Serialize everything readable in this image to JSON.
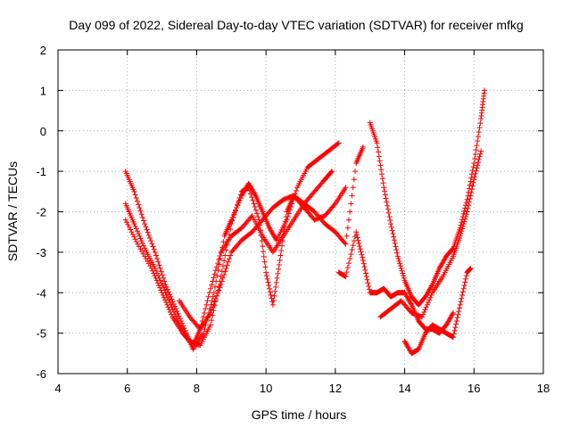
{
  "chart_data": {
    "type": "scatter",
    "title": "Day 099 of 2022, Sidereal Day-to-day VTEC variation (SDTVAR) for receiver mfkg",
    "xlabel": "GPS time / hours",
    "ylabel": "SDTVAR / TECUs",
    "xlim": [
      4,
      18
    ],
    "ylim": [
      -6,
      2
    ],
    "xticks": [
      "4",
      "6",
      "8",
      "10",
      "12",
      "14",
      "16",
      "18"
    ],
    "yticks": [
      "-6",
      "-5",
      "-4",
      "-3",
      "-2",
      "-1",
      "0",
      "1",
      "2"
    ],
    "grid": true,
    "marker": "+",
    "color": "#ff0000",
    "series": [
      {
        "x": [
          5.95,
          6.2,
          6.5,
          6.8,
          7.1,
          7.4,
          7.7,
          7.9,
          8.2,
          8.5,
          8.8,
          9.0,
          9.3,
          9.5,
          9.7,
          9.9,
          10.1,
          10.3,
          10.6,
          10.9,
          11.2,
          11.5,
          11.8,
          12.1
        ],
        "y": [
          -1.0,
          -1.5,
          -2.3,
          -3.0,
          -3.8,
          -4.4,
          -5.0,
          -5.4,
          -5.0,
          -4.0,
          -2.6,
          -2.2,
          -1.6,
          -1.3,
          -1.6,
          -2.0,
          -2.4,
          -2.7,
          -2.2,
          -1.4,
          -0.9,
          -0.7,
          -0.5,
          -0.3
        ]
      },
      {
        "x": [
          5.95,
          6.2,
          6.5,
          6.8,
          7.1,
          7.4,
          7.7,
          7.9,
          8.1,
          8.4,
          8.7,
          9.0,
          9.3,
          9.6,
          9.9,
          10.2,
          10.5,
          10.8,
          11.1,
          11.4,
          11.7,
          11.9
        ],
        "y": [
          -1.8,
          -2.3,
          -2.9,
          -3.4,
          -4.0,
          -4.6,
          -5.1,
          -5.3,
          -4.9,
          -3.9,
          -3.0,
          -2.6,
          -2.4,
          -2.1,
          -2.6,
          -3.0,
          -2.6,
          -2.2,
          -1.8,
          -1.5,
          -1.2,
          -1.0
        ]
      },
      {
        "x": [
          5.95,
          6.3,
          6.7,
          7.0,
          7.3,
          7.6,
          7.8,
          8.1,
          8.4,
          8.7,
          9.0,
          9.3,
          9.5,
          9.8,
          10.0,
          10.2,
          10.4,
          10.6,
          10.8,
          11.1,
          11.4,
          11.7,
          12.0,
          12.3
        ],
        "y": [
          -2.2,
          -2.8,
          -3.4,
          -4.0,
          -4.6,
          -5.0,
          -5.2,
          -5.3,
          -4.8,
          -3.6,
          -2.3,
          -1.5,
          -1.4,
          -2.2,
          -3.5,
          -4.3,
          -3.2,
          -2.0,
          -1.6,
          -1.9,
          -2.2,
          -2.1,
          -1.8,
          -1.4
        ]
      },
      {
        "x": [
          7.5,
          7.8,
          8.1,
          8.4,
          8.7,
          9.0,
          9.3,
          9.6,
          9.9,
          10.2,
          10.5,
          10.8,
          11.1,
          11.4,
          11.7,
          12.0,
          12.3,
          12.6,
          12.8
        ],
        "y": [
          -4.2,
          -4.6,
          -4.9,
          -4.5,
          -3.8,
          -3.0,
          -2.7,
          -2.5,
          -2.2,
          -1.9,
          -1.7,
          -1.6,
          -1.8,
          -2.0,
          -2.3,
          -2.5,
          -2.8,
          -0.8,
          -0.4
        ]
      },
      {
        "x": [
          12.1,
          12.3,
          12.6,
          12.8,
          13.0,
          13.2,
          13.4,
          13.6,
          13.8,
          14.0,
          14.2,
          14.4,
          14.6,
          14.8,
          15.0,
          15.2,
          15.4
        ],
        "y": [
          -3.5,
          -3.6,
          -2.5,
          -3.2,
          -4.0,
          -4.0,
          -3.9,
          -4.1,
          -4.0,
          -4.0,
          -4.3,
          -4.7,
          -4.9,
          -4.9,
          -5.0,
          -4.8,
          -4.5
        ]
      },
      {
        "x": [
          13.0,
          13.2,
          13.4,
          13.6,
          13.8,
          14.0,
          14.2,
          14.4,
          14.6,
          14.8,
          15.0,
          15.2,
          15.4,
          15.6,
          15.8,
          16.0,
          16.2,
          16.3
        ],
        "y": [
          0.2,
          -0.3,
          -1.4,
          -2.3,
          -3.1,
          -3.7,
          -4.1,
          -4.3,
          -4.1,
          -3.8,
          -3.4,
          -3.1,
          -2.9,
          -2.4,
          -1.7,
          -0.8,
          0.3,
          1.0
        ]
      },
      {
        "x": [
          13.3,
          13.6,
          13.9,
          14.2,
          14.5,
          14.8,
          15.1,
          15.4,
          15.6,
          15.8,
          16.0,
          16.2
        ],
        "y": [
          -4.6,
          -4.4,
          -4.2,
          -4.5,
          -4.6,
          -4.0,
          -3.6,
          -3.1,
          -2.6,
          -2.0,
          -1.2,
          -0.5
        ]
      },
      {
        "x": [
          14.0,
          14.2,
          14.4,
          14.6,
          14.8,
          15.0,
          15.2,
          15.4,
          15.6,
          15.8,
          15.9
        ],
        "y": [
          -5.2,
          -5.5,
          -5.4,
          -5.0,
          -4.8,
          -4.9,
          -5.0,
          -5.1,
          -4.3,
          -3.5,
          -3.4
        ]
      }
    ]
  }
}
